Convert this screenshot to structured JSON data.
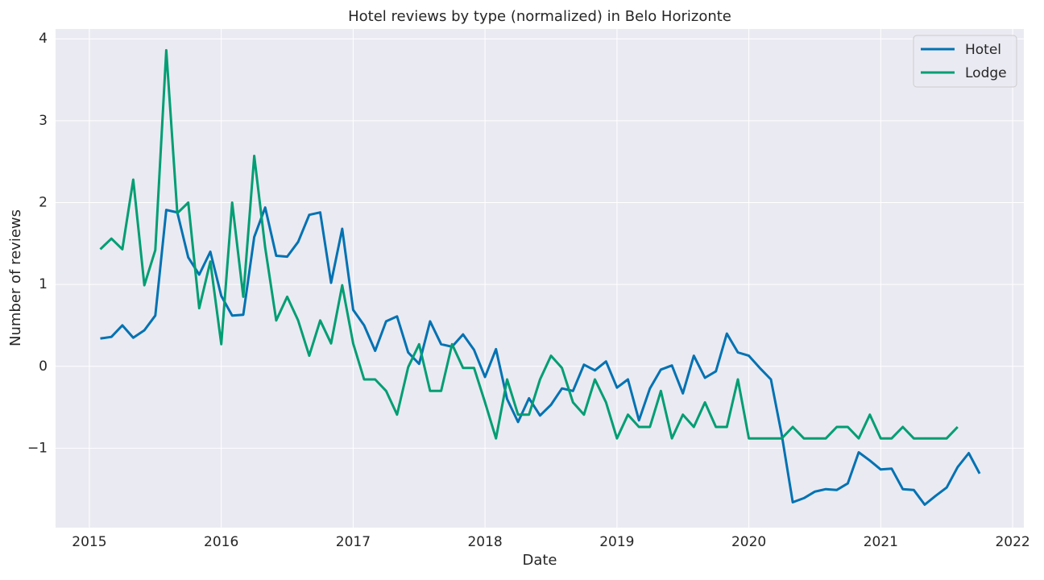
{
  "chart_data": {
    "type": "line",
    "title": "Hotel reviews by type (normalized) in Belo Horizonte",
    "x_label": "Date",
    "y_label": "Number of reviews",
    "x": [
      2015.083,
      2015.167,
      2015.25,
      2015.333,
      2015.417,
      2015.5,
      2015.583,
      2015.667,
      2015.75,
      2015.833,
      2015.917,
      2016.0,
      2016.083,
      2016.167,
      2016.25,
      2016.333,
      2016.417,
      2016.5,
      2016.583,
      2016.667,
      2016.75,
      2016.833,
      2016.917,
      2017.0,
      2017.083,
      2017.167,
      2017.25,
      2017.333,
      2017.417,
      2017.5,
      2017.583,
      2017.667,
      2017.75,
      2017.833,
      2017.917,
      2018.0,
      2018.083,
      2018.167,
      2018.25,
      2018.333,
      2018.417,
      2018.5,
      2018.583,
      2018.667,
      2018.75,
      2018.833,
      2018.917,
      2019.0,
      2019.083,
      2019.167,
      2019.25,
      2019.333,
      2019.417,
      2019.5,
      2019.583,
      2019.667,
      2019.75,
      2019.833,
      2019.917,
      2020.0,
      2020.083,
      2020.167,
      2020.25,
      2020.333,
      2020.417,
      2020.5,
      2020.583,
      2020.667,
      2020.75,
      2020.833,
      2020.917,
      2021.0,
      2021.083,
      2021.167,
      2021.25,
      2021.333,
      2021.417,
      2021.5,
      2021.583,
      2021.667,
      2021.75
    ],
    "series": [
      {
        "name": "Hotel",
        "color": "#0072b2",
        "values": [
          0.34,
          0.36,
          0.5,
          0.35,
          0.44,
          0.62,
          1.91,
          1.88,
          1.33,
          1.12,
          1.4,
          0.86,
          0.62,
          0.63,
          1.58,
          1.94,
          1.35,
          1.34,
          1.52,
          1.85,
          1.88,
          1.02,
          1.68,
          0.69,
          0.5,
          0.19,
          0.55,
          0.61,
          0.17,
          0.03,
          0.55,
          0.27,
          0.24,
          0.39,
          0.2,
          -0.13,
          0.21,
          -0.4,
          -0.68,
          -0.39,
          -0.6,
          -0.47,
          -0.27,
          -0.3,
          0.02,
          -0.05,
          0.06,
          -0.26,
          -0.16,
          -0.66,
          -0.27,
          -0.04,
          0.01,
          -0.33,
          0.13,
          -0.14,
          -0.06,
          0.4,
          0.17,
          0.13,
          -0.02,
          -0.16,
          -0.84,
          -1.66,
          -1.61,
          -1.53,
          -1.5,
          -1.51,
          -1.43,
          -1.05,
          -1.15,
          -1.26,
          -1.25,
          -1.5,
          -1.51,
          -1.69,
          -1.58,
          -1.48,
          -1.23,
          -1.06,
          -1.31
        ]
      },
      {
        "name": "Lodge",
        "color": "#009e73",
        "values": [
          1.43,
          1.56,
          1.43,
          2.28,
          0.99,
          1.42,
          3.86,
          1.87,
          2.0,
          0.71,
          1.28,
          0.27,
          2.0,
          0.85,
          2.57,
          1.45,
          0.56,
          0.85,
          0.56,
          0.13,
          0.56,
          0.28,
          0.99,
          0.28,
          -0.16,
          -0.16,
          -0.3,
          -0.59,
          -0.01,
          0.27,
          -0.3,
          -0.3,
          0.27,
          -0.02,
          -0.02,
          -0.44,
          -0.88,
          -0.16,
          -0.59,
          -0.59,
          -0.16,
          0.13,
          -0.02,
          -0.44,
          -0.59,
          -0.16,
          -0.44,
          -0.88,
          -0.59,
          -0.74,
          -0.74,
          -0.3,
          -0.88,
          -0.59,
          -0.74,
          -0.44,
          -0.74,
          -0.74,
          -0.16,
          -0.88,
          -0.88,
          -0.88,
          -0.88,
          -0.74,
          -0.88,
          -0.88,
          -0.88,
          -0.74,
          -0.74,
          -0.88,
          -0.59,
          -0.88,
          -0.88,
          -0.74,
          -0.88,
          -0.88,
          -0.88,
          -0.88,
          -0.74,
          null,
          null
        ]
      }
    ],
    "xlim": [
      2014.744,
      2022.085
    ],
    "xticks": [
      2015,
      2016,
      2017,
      2018,
      2019,
      2020,
      2021,
      2022
    ],
    "ylim": [
      -1.97,
      4.12
    ],
    "yticks": [
      {
        "value": -1,
        "label": "−1"
      },
      0,
      1,
      2,
      3,
      4
    ],
    "grid": true,
    "legend": "upper right"
  }
}
